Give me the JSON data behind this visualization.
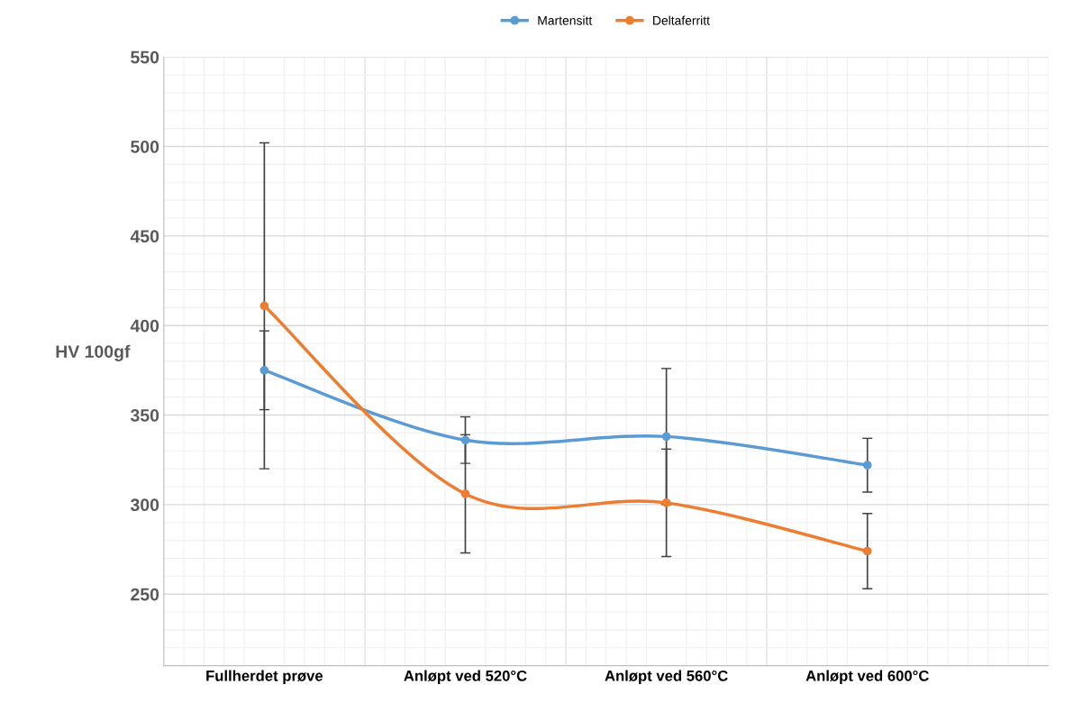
{
  "chart_data": {
    "type": "line",
    "ylabel": "HV 100gf",
    "categories": [
      "Fullherdet prøve",
      "Anløpt ved 520°C",
      "Anløpt ved 560°C",
      "Anløpt ved 600°C"
    ],
    "series": [
      {
        "name": "Martensitt",
        "color": "#5b9bd5",
        "values": [
          375,
          336,
          338,
          322
        ],
        "errors": [
          22,
          13,
          38,
          15
        ]
      },
      {
        "name": "Deltaferritt",
        "color": "#ed7d31",
        "values": [
          411,
          306,
          301,
          274
        ],
        "errors": [
          91,
          33,
          30,
          21
        ]
      }
    ],
    "ylim": [
      210,
      550
    ],
    "yticks": [
      250,
      300,
      350,
      400,
      450,
      500,
      550
    ],
    "grid": true,
    "legend": "top",
    "marker": "circle",
    "line_style": "solid"
  }
}
